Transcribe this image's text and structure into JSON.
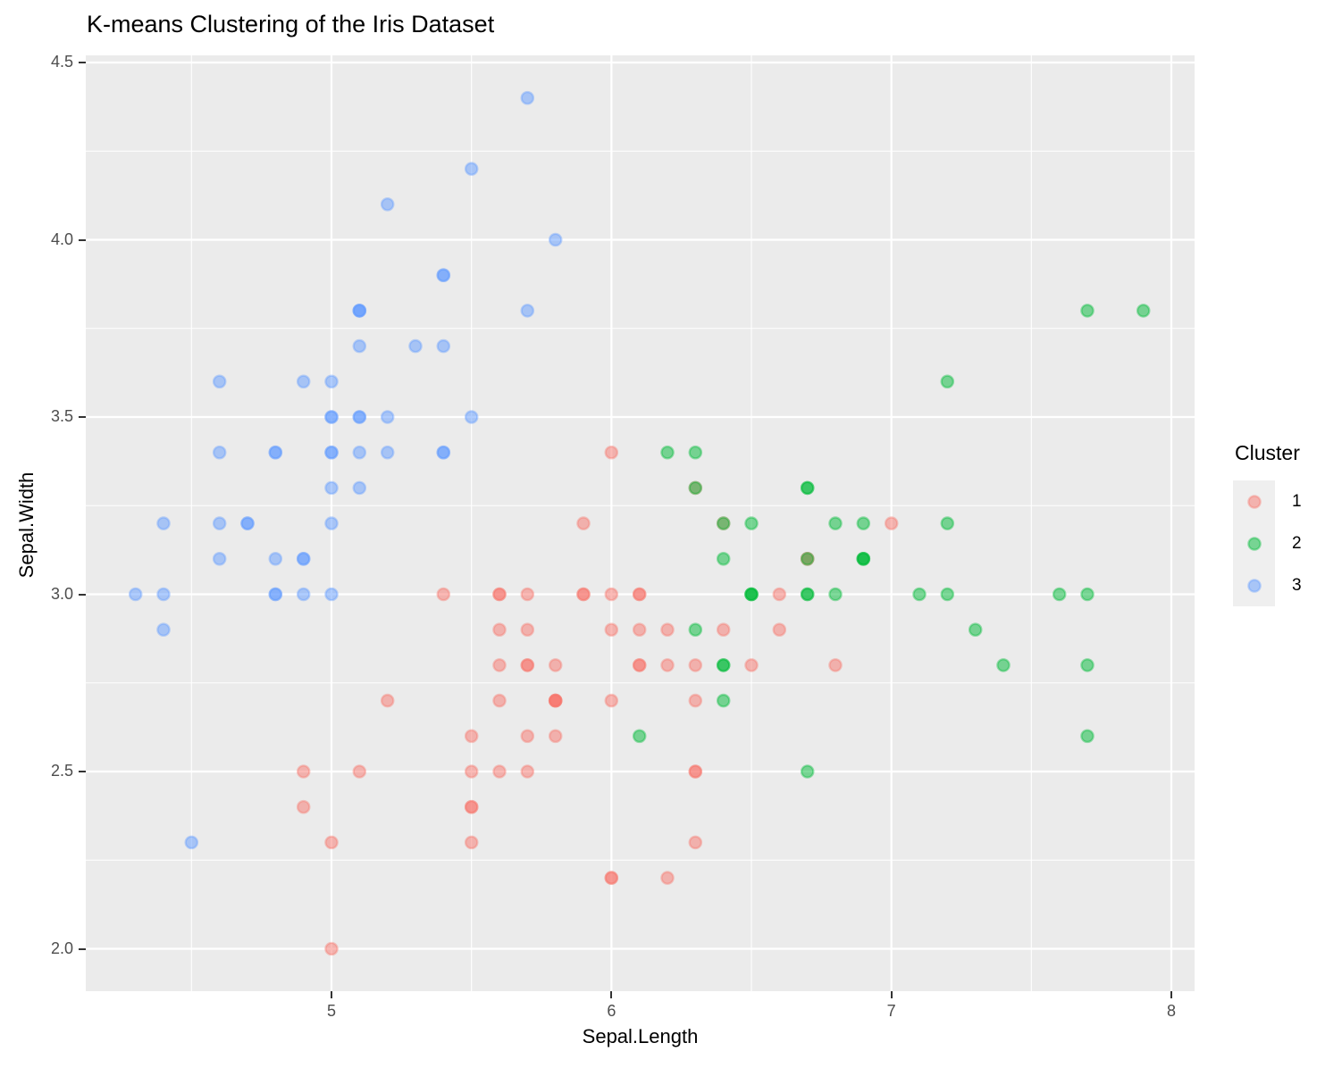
{
  "title": "K-means Clustering of the Iris Dataset",
  "axes": {
    "x": {
      "label": "Sepal.Length",
      "major_ticks": [
        5,
        6,
        7,
        8
      ],
      "major_tick_labels": [
        "5",
        "6",
        "7",
        "8"
      ],
      "minor_ticks": [
        4.5,
        5.5,
        6.5,
        7.5
      ]
    },
    "y": {
      "label": "Sepal.Width",
      "major_ticks": [
        2.0,
        2.5,
        3.0,
        3.5,
        4.0,
        4.5
      ],
      "major_tick_labels": [
        "2.0",
        "2.5",
        "3.0",
        "3.5",
        "4.0",
        "4.5"
      ],
      "minor_ticks": [
        2.25,
        2.75,
        3.25,
        3.75,
        4.25
      ]
    }
  },
  "legend": {
    "title": "Cluster",
    "items": [
      {
        "label": "1",
        "color": "#F8766D"
      },
      {
        "label": "2",
        "color": "#00BA38"
      },
      {
        "label": "3",
        "color": "#619CFF"
      }
    ]
  },
  "style": {
    "panel_bg": "#EBEBEB",
    "grid_color": "#FFFFFF",
    "legend_key_bg": "#EFEFEF",
    "tick_label_color": "#4D4D4D",
    "point_fill_opacity": 0.5,
    "point_stroke_opacity": 0.38
  },
  "chart_data": {
    "type": "scatter",
    "title": "K-means Clustering of the Iris Dataset",
    "xlabel": "Sepal.Length",
    "ylabel": "Sepal.Width",
    "xlim": [
      4.12,
      8.08
    ],
    "ylim": [
      1.88,
      4.52
    ],
    "grid": true,
    "legend_position": "right",
    "series": [
      {
        "name": "1",
        "color": "#F8766D",
        "points": [
          [
            7.0,
            3.2
          ],
          [
            6.4,
            3.2
          ],
          [
            5.5,
            2.3
          ],
          [
            6.5,
            2.8
          ],
          [
            5.7,
            2.8
          ],
          [
            6.3,
            3.3
          ],
          [
            4.9,
            2.4
          ],
          [
            6.6,
            2.9
          ],
          [
            5.2,
            2.7
          ],
          [
            5.0,
            2.0
          ],
          [
            5.9,
            3.0
          ],
          [
            6.0,
            2.2
          ],
          [
            6.1,
            2.9
          ],
          [
            5.6,
            2.9
          ],
          [
            6.7,
            3.1
          ],
          [
            5.6,
            3.0
          ],
          [
            5.8,
            2.7
          ],
          [
            6.2,
            2.2
          ],
          [
            5.6,
            2.5
          ],
          [
            5.9,
            3.2
          ],
          [
            6.1,
            2.8
          ],
          [
            6.3,
            2.5
          ],
          [
            6.1,
            2.8
          ],
          [
            6.4,
            2.9
          ],
          [
            6.6,
            3.0
          ],
          [
            6.8,
            2.8
          ],
          [
            6.0,
            2.9
          ],
          [
            5.7,
            2.6
          ],
          [
            5.5,
            2.4
          ],
          [
            5.5,
            2.4
          ],
          [
            5.8,
            2.7
          ],
          [
            6.0,
            2.7
          ],
          [
            5.4,
            3.0
          ],
          [
            6.0,
            3.4
          ],
          [
            6.7,
            3.1
          ],
          [
            6.3,
            2.3
          ],
          [
            5.6,
            3.0
          ],
          [
            5.5,
            2.5
          ],
          [
            5.5,
            2.6
          ],
          [
            6.1,
            3.0
          ],
          [
            5.8,
            2.6
          ],
          [
            5.0,
            2.3
          ],
          [
            5.6,
            2.7
          ],
          [
            5.7,
            3.0
          ],
          [
            5.7,
            2.9
          ],
          [
            6.2,
            2.9
          ],
          [
            5.1,
            2.5
          ],
          [
            5.7,
            2.8
          ],
          [
            5.8,
            2.7
          ],
          [
            4.9,
            2.5
          ],
          [
            5.7,
            2.5
          ],
          [
            5.8,
            2.8
          ],
          [
            6.0,
            2.2
          ],
          [
            5.6,
            2.8
          ],
          [
            6.3,
            2.7
          ],
          [
            6.2,
            2.8
          ],
          [
            6.1,
            3.0
          ],
          [
            6.3,
            2.8
          ],
          [
            6.0,
            3.0
          ],
          [
            5.8,
            2.7
          ],
          [
            6.3,
            2.5
          ],
          [
            5.9,
            3.0
          ]
        ]
      },
      {
        "name": "2",
        "color": "#00BA38",
        "points": [
          [
            6.9,
            3.1
          ],
          [
            6.7,
            3.0
          ],
          [
            6.3,
            3.3
          ],
          [
            7.1,
            3.0
          ],
          [
            6.3,
            2.9
          ],
          [
            6.5,
            3.0
          ],
          [
            7.6,
            3.0
          ],
          [
            7.3,
            2.9
          ],
          [
            6.7,
            2.5
          ],
          [
            7.2,
            3.6
          ],
          [
            6.5,
            3.2
          ],
          [
            6.4,
            2.7
          ],
          [
            6.8,
            3.0
          ],
          [
            6.4,
            3.2
          ],
          [
            6.5,
            3.0
          ],
          [
            7.7,
            3.8
          ],
          [
            7.7,
            2.6
          ],
          [
            6.9,
            3.2
          ],
          [
            7.7,
            2.8
          ],
          [
            6.7,
            3.3
          ],
          [
            7.2,
            3.2
          ],
          [
            6.4,
            2.8
          ],
          [
            7.2,
            3.0
          ],
          [
            7.4,
            2.8
          ],
          [
            7.9,
            3.8
          ],
          [
            6.4,
            2.8
          ],
          [
            6.1,
            2.6
          ],
          [
            7.7,
            3.0
          ],
          [
            6.3,
            3.4
          ],
          [
            6.4,
            3.1
          ],
          [
            6.9,
            3.1
          ],
          [
            6.7,
            3.1
          ],
          [
            6.9,
            3.1
          ],
          [
            6.8,
            3.2
          ],
          [
            6.7,
            3.3
          ],
          [
            6.7,
            3.0
          ],
          [
            6.5,
            3.0
          ],
          [
            6.2,
            3.4
          ]
        ]
      },
      {
        "name": "3",
        "color": "#619CFF",
        "points": [
          [
            5.1,
            3.5
          ],
          [
            4.9,
            3.0
          ],
          [
            4.7,
            3.2
          ],
          [
            4.6,
            3.1
          ],
          [
            5.0,
            3.6
          ],
          [
            5.4,
            3.9
          ],
          [
            4.6,
            3.4
          ],
          [
            5.0,
            3.4
          ],
          [
            4.4,
            2.9
          ],
          [
            4.9,
            3.1
          ],
          [
            5.4,
            3.7
          ],
          [
            4.8,
            3.4
          ],
          [
            4.8,
            3.0
          ],
          [
            4.3,
            3.0
          ],
          [
            5.8,
            4.0
          ],
          [
            5.7,
            4.4
          ],
          [
            5.4,
            3.9
          ],
          [
            5.1,
            3.5
          ],
          [
            5.7,
            3.8
          ],
          [
            5.1,
            3.8
          ],
          [
            5.4,
            3.4
          ],
          [
            5.1,
            3.7
          ],
          [
            4.6,
            3.6
          ],
          [
            5.1,
            3.3
          ],
          [
            4.8,
            3.4
          ],
          [
            5.0,
            3.0
          ],
          [
            5.0,
            3.4
          ],
          [
            5.2,
            3.5
          ],
          [
            5.2,
            3.4
          ],
          [
            4.7,
            3.2
          ],
          [
            4.8,
            3.1
          ],
          [
            5.4,
            3.4
          ],
          [
            5.2,
            4.1
          ],
          [
            5.5,
            4.2
          ],
          [
            4.9,
            3.1
          ],
          [
            5.0,
            3.2
          ],
          [
            5.5,
            3.5
          ],
          [
            4.9,
            3.6
          ],
          [
            4.4,
            3.0
          ],
          [
            5.1,
            3.4
          ],
          [
            5.0,
            3.5
          ],
          [
            4.5,
            2.3
          ],
          [
            4.4,
            3.2
          ],
          [
            5.0,
            3.5
          ],
          [
            5.1,
            3.8
          ],
          [
            4.8,
            3.0
          ],
          [
            5.1,
            3.8
          ],
          [
            4.6,
            3.2
          ],
          [
            5.3,
            3.7
          ],
          [
            5.0,
            3.3
          ]
        ]
      }
    ]
  }
}
